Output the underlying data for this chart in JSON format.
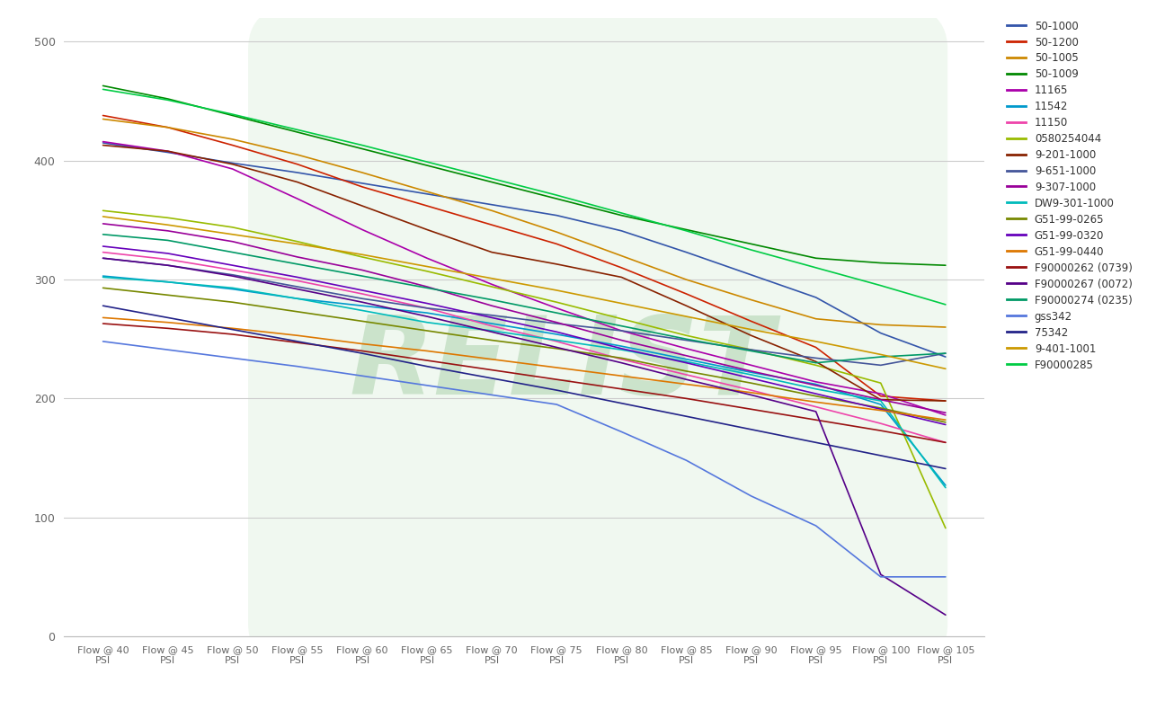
{
  "x_labels": [
    "Flow @ 40\nPSI",
    "Flow @ 45\nPSI",
    "Flow @ 50\nPSI",
    "Flow @ 55\nPSI",
    "Flow @ 60\nPSI",
    "Flow @ 65\nPSI",
    "Flow @ 70\nPSI",
    "Flow @ 75\nPSI",
    "Flow @ 80\nPSI",
    "Flow @ 85\nPSI",
    "Flow @ 90\nPSI",
    "Flow @ 95\nPSI",
    "Flow @ 100\nPSI",
    "Flow @ 105\nPSI"
  ],
  "x_values": [
    40,
    45,
    50,
    55,
    60,
    65,
    70,
    75,
    80,
    85,
    90,
    95,
    100,
    105
  ],
  "series": [
    {
      "name": "50-1000",
      "color": "#3355aa",
      "data": [
        415,
        407,
        398,
        390,
        381,
        372,
        363,
        354,
        341,
        323,
        304,
        285,
        255,
        235
      ]
    },
    {
      "name": "50-1200",
      "color": "#cc2200",
      "data": [
        438,
        428,
        413,
        397,
        378,
        362,
        346,
        330,
        310,
        288,
        265,
        243,
        202,
        198
      ]
    },
    {
      "name": "50-1005",
      "color": "#cc8800",
      "data": [
        435,
        428,
        418,
        405,
        390,
        374,
        358,
        340,
        320,
        300,
        283,
        267,
        262,
        260
      ]
    },
    {
      "name": "50-1009",
      "color": "#008800",
      "data": [
        463,
        452,
        438,
        424,
        410,
        396,
        382,
        368,
        354,
        342,
        330,
        318,
        314,
        312
      ]
    },
    {
      "name": "11165",
      "color": "#aa00aa",
      "data": [
        416,
        408,
        393,
        368,
        342,
        318,
        296,
        276,
        257,
        242,
        228,
        214,
        204,
        186
      ]
    },
    {
      "name": "11542",
      "color": "#0099cc",
      "data": [
        303,
        298,
        292,
        284,
        278,
        272,
        263,
        254,
        244,
        233,
        222,
        212,
        195,
        127
      ]
    },
    {
      "name": "11150",
      "color": "#ee44aa",
      "data": [
        323,
        317,
        308,
        299,
        288,
        276,
        261,
        248,
        233,
        220,
        207,
        193,
        179,
        163
      ]
    },
    {
      "name": "0580254044",
      "color": "#99bb00",
      "data": [
        358,
        352,
        344,
        332,
        319,
        307,
        294,
        281,
        267,
        253,
        241,
        228,
        213,
        91
      ]
    },
    {
      "name": "9-201-1000",
      "color": "#882200",
      "data": [
        413,
        408,
        397,
        382,
        362,
        342,
        323,
        313,
        302,
        278,
        253,
        231,
        199,
        198
      ]
    },
    {
      "name": "9-651-1000",
      "color": "#445599",
      "data": [
        318,
        312,
        304,
        294,
        284,
        276,
        270,
        263,
        257,
        249,
        241,
        234,
        228,
        238
      ]
    },
    {
      "name": "9-307-1000",
      "color": "#990099",
      "data": [
        347,
        341,
        332,
        319,
        308,
        294,
        278,
        264,
        249,
        236,
        223,
        211,
        199,
        188
      ]
    },
    {
      "name": "DW9-301-1000",
      "color": "#00bbbb",
      "data": [
        302,
        298,
        293,
        284,
        274,
        264,
        257,
        249,
        241,
        231,
        220,
        208,
        198,
        125
      ]
    },
    {
      "name": "G51-99-0265",
      "color": "#778800",
      "data": [
        293,
        287,
        281,
        273,
        265,
        257,
        249,
        242,
        234,
        223,
        213,
        202,
        192,
        180
      ]
    },
    {
      "name": "G51-99-0320",
      "color": "#6600bb",
      "data": [
        328,
        322,
        312,
        302,
        291,
        280,
        268,
        256,
        242,
        230,
        217,
        204,
        191,
        178
      ]
    },
    {
      "name": "G51-99-0440",
      "color": "#dd7700",
      "data": [
        268,
        264,
        259,
        253,
        246,
        240,
        233,
        226,
        219,
        212,
        205,
        197,
        190,
        182
      ]
    },
    {
      "name": "F90000262 (0739)",
      "color": "#991111",
      "data": [
        263,
        259,
        254,
        247,
        240,
        232,
        224,
        216,
        208,
        200,
        191,
        182,
        173,
        163
      ]
    },
    {
      "name": "F90000267 (0072)",
      "color": "#550088",
      "data": [
        318,
        312,
        303,
        292,
        281,
        269,
        256,
        243,
        230,
        216,
        203,
        189,
        52,
        18
      ]
    },
    {
      "name": "F90000274 (0235)",
      "color": "#009966",
      "data": [
        338,
        333,
        323,
        313,
        303,
        293,
        283,
        272,
        261,
        250,
        240,
        230,
        235,
        238
      ]
    },
    {
      "name": "gss342",
      "color": "#5577dd",
      "data": [
        248,
        241,
        234,
        227,
        219,
        211,
        203,
        195,
        172,
        148,
        118,
        93,
        50,
        50
      ]
    },
    {
      "name": "75342",
      "color": "#222288",
      "data": [
        278,
        268,
        258,
        248,
        238,
        227,
        217,
        207,
        196,
        185,
        174,
        163,
        152,
        141
      ]
    },
    {
      "name": "9-401-1001",
      "color": "#cc9900",
      "data": [
        353,
        346,
        338,
        330,
        321,
        311,
        301,
        291,
        280,
        269,
        258,
        248,
        237,
        225
      ]
    },
    {
      "name": "F90000285",
      "color": "#00cc44",
      "data": [
        460,
        451,
        439,
        426,
        413,
        399,
        385,
        371,
        356,
        341,
        325,
        310,
        295,
        279
      ]
    }
  ],
  "ylim": [
    0,
    520
  ],
  "yticks": [
    0,
    100,
    200,
    300,
    400,
    500
  ],
  "background_color": "#ffffff",
  "grid_color": "#cccccc"
}
